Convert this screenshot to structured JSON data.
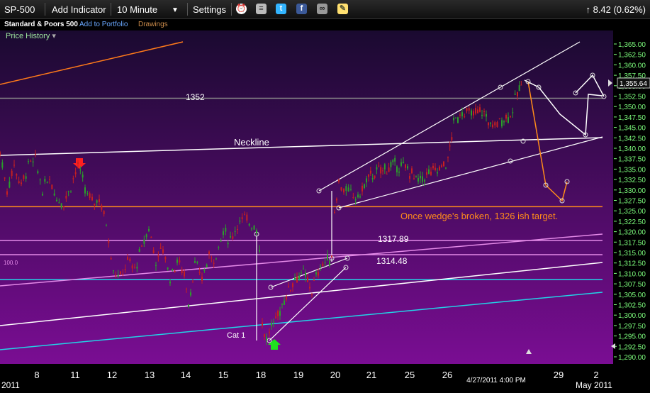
{
  "toolbar": {
    "symbol": "SP-500",
    "add_indicator": "Add Indicator",
    "interval": "10 Minute",
    "settings": "Settings",
    "change": "8.42 (0.62%)",
    "icons": [
      "alarm-clock-icon",
      "database-icon",
      "twitter-icon",
      "facebook-icon",
      "binoculars-icon",
      "note-icon"
    ]
  },
  "subbar": {
    "name": "Standard & Poors 500",
    "add_portfolio": "Add to Portfolio",
    "drawings": "Drawings"
  },
  "price_history_label": "Price History",
  "colors": {
    "background_top": "#1a0a30",
    "background_bottom": "#7a0d93",
    "axis_text": "#7dff7d",
    "up_candle": "#2aa02a",
    "down_candle": "#c62020"
  },
  "chart_data": {
    "type": "candlestick",
    "ylim": [
      1288.5,
      1366.5
    ],
    "yticks": [
      "1,365.00",
      "1,362.50",
      "1,360.00",
      "1,357.50",
      "1,355.00",
      "1,352.50",
      "1,350.00",
      "1,347.50",
      "1,345.00",
      "1,342.50",
      "1,340.00",
      "1,337.50",
      "1,335.00",
      "1,332.50",
      "1,330.00",
      "1,327.50",
      "1,325.00",
      "1,322.50",
      "1,320.00",
      "1,317.50",
      "1,315.00",
      "1,312.50",
      "1,310.00",
      "1,307.50",
      "1,305.00",
      "1,302.50",
      "1,300.00",
      "1,297.50",
      "1,295.00",
      "1,292.50",
      "1,290.00"
    ],
    "x_labels": [
      "8",
      "11",
      "12",
      "13",
      "14",
      "15",
      "18",
      "19",
      "20",
      "21",
      "25",
      "26",
      "29",
      "2"
    ],
    "year_label_left": "2011",
    "year_label_right": "May 2011",
    "crosshair_date": "4/27/2011 4:00 PM",
    "last_price": "1,355.64",
    "last_price_value": 1355.64,
    "price_path": [
      [
        0,
        1339
      ],
      [
        10,
        1330
      ],
      [
        20,
        1336
      ],
      [
        30,
        1331
      ],
      [
        40,
        1336
      ],
      [
        50,
        1337
      ],
      [
        60,
        1330
      ],
      [
        70,
        1333
      ],
      [
        80,
        1328
      ],
      [
        90,
        1327
      ],
      [
        100,
        1331
      ],
      [
        110,
        1336
      ],
      [
        120,
        1330
      ],
      [
        130,
        1327
      ],
      [
        140,
        1328
      ],
      [
        150,
        1322
      ],
      [
        160,
        1311
      ],
      [
        170,
        1309
      ],
      [
        180,
        1313
      ],
      [
        190,
        1311
      ],
      [
        200,
        1316
      ],
      [
        210,
        1321
      ],
      [
        220,
        1313
      ],
      [
        230,
        1316
      ],
      [
        240,
        1309
      ],
      [
        250,
        1313
      ],
      [
        260,
        1310
      ],
      [
        266,
        1303
      ],
      [
        275,
        1312
      ],
      [
        285,
        1309
      ],
      [
        295,
        1314
      ],
      [
        305,
        1314
      ],
      [
        315,
        1320
      ],
      [
        325,
        1318
      ],
      [
        335,
        1322
      ],
      [
        345,
        1323
      ],
      [
        355,
        1322
      ],
      [
        362,
        1321
      ],
      [
        366,
        1316
      ],
      [
        370,
        1298
      ],
      [
        376,
        1294
      ],
      [
        380,
        1296
      ],
      [
        392,
        1300
      ],
      [
        404,
        1305
      ],
      [
        416,
        1309
      ],
      [
        428,
        1310
      ],
      [
        440,
        1306
      ],
      [
        452,
        1312
      ],
      [
        462,
        1313
      ],
      [
        468,
        1314
      ],
      [
        472,
        1325
      ],
      [
        478,
        1332
      ],
      [
        485,
        1330
      ],
      [
        495,
        1329
      ],
      [
        505,
        1328
      ],
      [
        520,
        1333
      ],
      [
        540,
        1335
      ],
      [
        560,
        1336
      ],
      [
        575,
        1335
      ],
      [
        590,
        1332
      ],
      [
        605,
        1334
      ],
      [
        620,
        1335
      ],
      [
        632,
        1337
      ],
      [
        640,
        1346
      ],
      [
        652,
        1349
      ],
      [
        665,
        1348
      ],
      [
        680,
        1349
      ],
      [
        695,
        1345
      ],
      [
        708,
        1347
      ],
      [
        720,
        1348
      ],
      [
        730,
        1353
      ],
      [
        738,
        1356
      ]
    ],
    "annotations": {
      "level_1352": "1352",
      "neckline": "Neckline",
      "level_1317": "1317.89",
      "level_1314": "1314.48",
      "target_note": "Once wedge's broken, 1326 ish target.",
      "cat_label": "Cat 1",
      "fib_label": "100.0"
    },
    "horizontal_levels": [
      {
        "value": 1352,
        "color": "#888888"
      },
      {
        "value": 1326,
        "color": "#ff8c1a"
      },
      {
        "value": 1317.89,
        "color": "#e48ae8"
      },
      {
        "value": 1314.48,
        "color": "#e48ae8"
      },
      {
        "value": 1308.5,
        "color": "#22d3e6"
      }
    ],
    "grid": false,
    "legend": "none"
  }
}
